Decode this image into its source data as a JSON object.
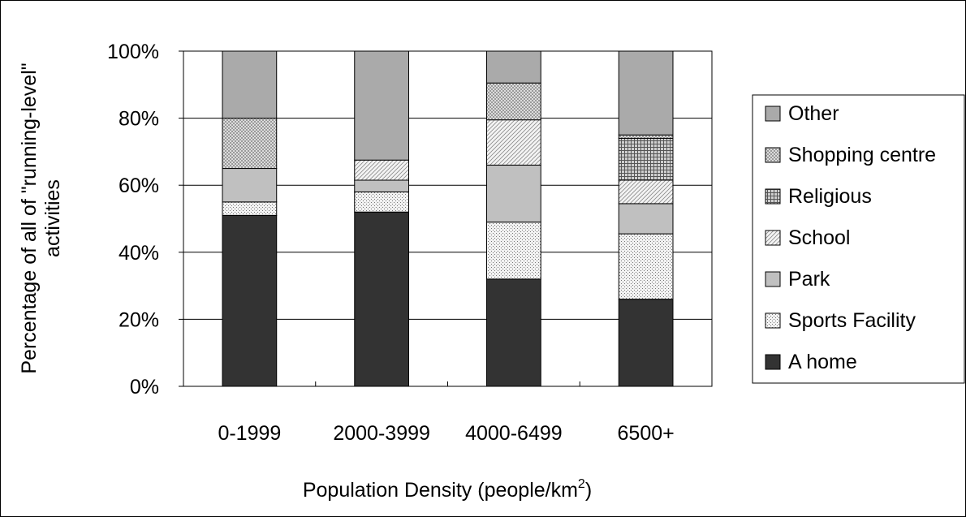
{
  "chart_data": {
    "type": "bar",
    "stacked": true,
    "categories": [
      "0-1999",
      "2000-3999",
      "4000-6499",
      "6500+"
    ],
    "series": [
      {
        "name": "A home",
        "values": [
          51,
          52,
          32,
          26
        ],
        "color": "#333333",
        "pattern": "solid"
      },
      {
        "name": "Sports Facility",
        "values": [
          4,
          6,
          17,
          19.5
        ],
        "color": "#e4e4e4",
        "pattern": "dots"
      },
      {
        "name": "Park",
        "values": [
          10,
          3.5,
          17,
          9
        ],
        "color": "#c0c0c0",
        "pattern": "solid"
      },
      {
        "name": "School",
        "values": [
          0,
          6,
          13.5,
          7
        ],
        "color": "#f0f0f0",
        "pattern": "diagonal"
      },
      {
        "name": "Religious",
        "values": [
          0,
          0,
          0,
          12.5
        ],
        "color": "#bdbdbd",
        "pattern": "grid"
      },
      {
        "name": "Shopping centre",
        "values": [
          15,
          0,
          11,
          1
        ],
        "color": "#cfcfcf",
        "pattern": "checker"
      },
      {
        "name": "Other",
        "values": [
          20,
          32.5,
          9.5,
          25
        ],
        "color": "#aaaaaa",
        "pattern": "solid"
      }
    ],
    "ylim": [
      0,
      100
    ],
    "yticks": [
      "0%",
      "20%",
      "40%",
      "60%",
      "80%",
      "100%"
    ],
    "ylabel_line1": "Percentage of all of \"running-level\"",
    "ylabel_line2": "activities",
    "xlabel_main": "Population Density (people/km",
    "xlabel_sup": "2",
    "xlabel_end": ")",
    "grid": true,
    "legend_position": "right",
    "legend_order": [
      "Other",
      "Shopping centre",
      "Religious",
      "School",
      "Park",
      "Sports Facility",
      "A home"
    ]
  }
}
